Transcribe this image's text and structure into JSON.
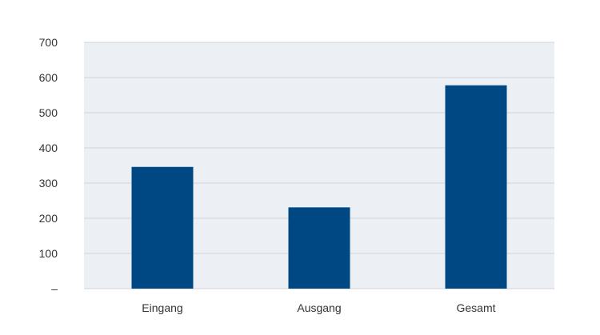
{
  "chart_data": {
    "type": "bar",
    "categories": [
      "Eingang",
      "Ausgang",
      "Gesamt"
    ],
    "values": [
      346,
      231,
      578
    ],
    "title": "",
    "xlabel": "",
    "ylabel": "",
    "ylim": [
      0,
      700
    ],
    "y_ticks": [
      {
        "value": 0,
        "label": "–"
      },
      {
        "value": 100,
        "label": "100"
      },
      {
        "value": 200,
        "label": "200"
      },
      {
        "value": 300,
        "label": "300"
      },
      {
        "value": 400,
        "label": "400"
      },
      {
        "value": 500,
        "label": "500"
      },
      {
        "value": 600,
        "label": "600"
      },
      {
        "value": 700,
        "label": "700"
      }
    ],
    "grid": true,
    "colors": {
      "bar": "#004883",
      "plot_background": "#ecf0f4",
      "gridline": "#cdd3da"
    }
  }
}
